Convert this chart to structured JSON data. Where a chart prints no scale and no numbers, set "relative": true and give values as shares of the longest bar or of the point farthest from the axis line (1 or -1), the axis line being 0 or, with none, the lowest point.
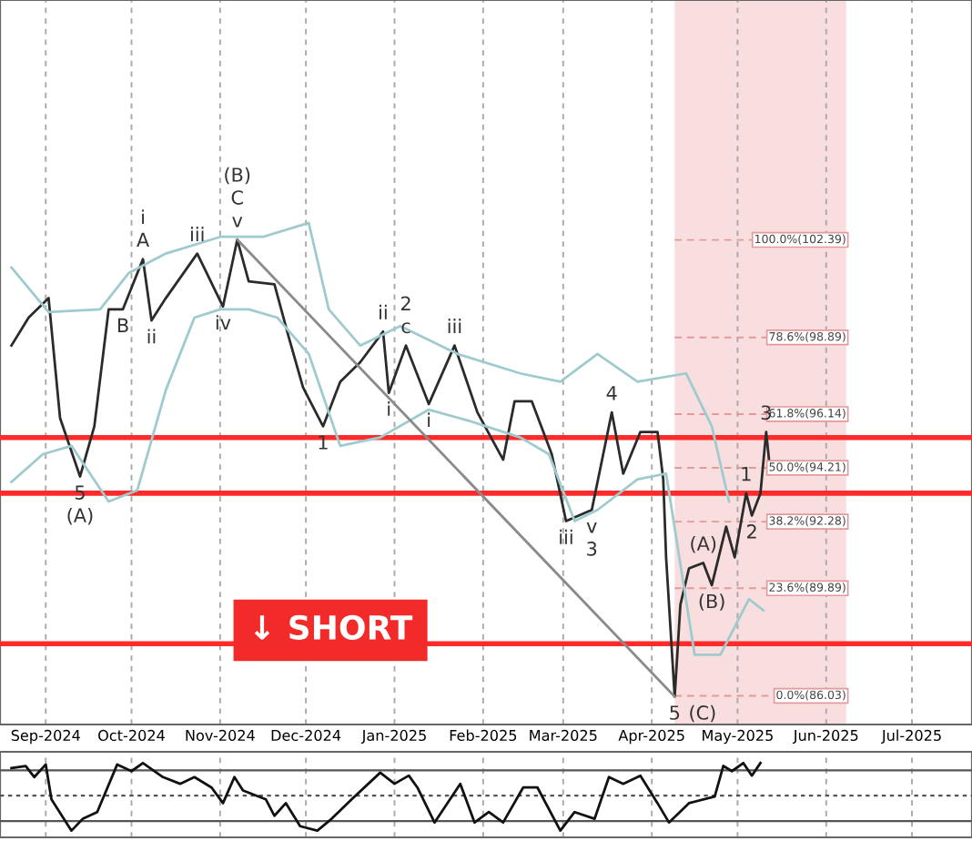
{
  "chart_data": [
    {
      "type": "line",
      "xlim": [
        "2024-08-16",
        "2025-07-22"
      ],
      "ylim": [
        85.0,
        111.0
      ],
      "xticks": [
        {
          "value": "2024-09-01",
          "label": "Sep-2024"
        },
        {
          "value": "2024-10-01",
          "label": "Oct-2024"
        },
        {
          "value": "2024-11-01",
          "label": "Nov-2024"
        },
        {
          "value": "2024-12-01",
          "label": "Dec-2024"
        },
        {
          "value": "2025-01-01",
          "label": "Jan-2025"
        },
        {
          "value": "2025-02-01",
          "label": "Feb-2025"
        },
        {
          "value": "2025-03-01",
          "label": "Mar-2025"
        },
        {
          "value": "2025-04-01",
          "label": "Apr-2025"
        },
        {
          "value": "2025-05-01",
          "label": "May-2025"
        },
        {
          "value": "2025-06-01",
          "label": "Jun-2025"
        },
        {
          "value": "2025-07-01",
          "label": "Jul-2025"
        }
      ],
      "grid": "x",
      "tick_labels": "x",
      "legend": false,
      "series": [
        {
          "color": "#2b2b2b",
          "x": [
            "2024-08-20",
            "2024-08-26",
            "2024-09-02",
            "2024-09-06",
            "2024-09-13",
            "2024-09-18",
            "2024-09-23",
            "2024-09-28",
            "2024-10-05",
            "2024-10-08",
            "2024-10-13",
            "2024-10-24",
            "2024-11-02",
            "2024-11-07",
            "2024-11-11",
            "2024-11-20",
            "2024-11-25",
            "2024-11-30",
            "2024-12-07",
            "2024-12-13",
            "2024-12-20",
            "2024-12-28",
            "2024-12-30",
            "2025-01-05",
            "2025-01-13",
            "2025-01-22",
            "2025-01-30",
            "2025-02-08",
            "2025-02-12",
            "2025-02-18",
            "2025-02-25",
            "2025-03-02",
            "2025-03-11",
            "2025-03-18",
            "2025-03-22",
            "2025-03-28",
            "2025-04-03",
            "2025-04-05",
            "2025-04-06",
            "2025-04-09",
            "2025-04-11",
            "2025-04-14",
            "2025-04-19",
            "2025-04-22",
            "2025-04-27",
            "2025-04-30",
            "2025-05-04",
            "2025-05-06",
            "2025-05-09",
            "2025-05-11",
            "2025-05-12"
          ],
          "values": [
            98.6,
            99.6,
            100.3,
            96.0,
            93.9,
            95.7,
            99.9,
            99.9,
            101.7,
            99.5,
            100.3,
            101.9,
            100.0,
            102.4,
            100.9,
            100.8,
            98.9,
            97.1,
            95.7,
            97.3,
            98.0,
            99.1,
            96.9,
            98.6,
            96.5,
            98.6,
            96.2,
            94.5,
            96.6,
            96.6,
            94.7,
            92.3,
            92.7,
            96.2,
            94.0,
            95.5,
            95.5,
            93.8,
            91.0,
            86.0,
            89.3,
            90.6,
            90.8,
            90.0,
            92.1,
            91.0,
            93.3,
            92.5,
            93.3,
            95.5,
            94.5
          ]
        },
        {
          "color": "#9fcbcf",
          "x": [
            "2024-08-20",
            "2024-09-02",
            "2024-09-20",
            "2024-09-30",
            "2024-10-13",
            "2024-11-01",
            "2024-11-16",
            "2024-12-02",
            "2024-12-09",
            "2024-12-20",
            "2025-01-03",
            "2025-01-23",
            "2025-02-14",
            "2025-02-28",
            "2025-03-13",
            "2025-03-27",
            "2025-04-13",
            "2025-04-22",
            "2025-04-28"
          ],
          "values": [
            101.4,
            99.8,
            99.9,
            101.2,
            101.9,
            102.5,
            102.5,
            103.0,
            99.9,
            98.6,
            99.3,
            98.3,
            97.6,
            97.3,
            98.3,
            97.3,
            97.6,
            95.7,
            93.0
          ]
        },
        {
          "color": "#9fcbcf",
          "x": [
            "2024-08-20",
            "2024-08-31",
            "2024-09-10",
            "2024-09-23",
            "2024-10-03",
            "2024-10-13",
            "2024-10-23",
            "2024-11-01",
            "2024-11-11",
            "2024-11-21",
            "2024-12-02",
            "2024-12-13",
            "2024-12-27",
            "2025-01-13",
            "2025-01-27",
            "2025-02-14",
            "2025-02-24",
            "2025-03-05",
            "2025-03-13",
            "2025-03-27",
            "2025-04-06",
            "2025-04-16",
            "2025-04-25",
            "2025-05-05",
            "2025-05-10"
          ],
          "values": [
            93.7,
            94.7,
            95.0,
            93.0,
            93.4,
            97.0,
            99.6,
            99.9,
            99.9,
            99.6,
            98.3,
            95.0,
            95.3,
            96.3,
            95.9,
            95.3,
            94.7,
            92.3,
            92.7,
            93.8,
            94.0,
            87.5,
            87.5,
            89.5,
            89.1
          ]
        },
        {
          "color": "#8a8a8a",
          "x": [
            "2024-11-07",
            "2025-04-09"
          ],
          "values": [
            102.4,
            86.0
          ]
        }
      ],
      "ref_lines": [
        {
          "axis": "y",
          "value": 95.3,
          "color": "#ff2a2a"
        },
        {
          "axis": "y",
          "value": 93.3,
          "color": "#ff2a2a"
        },
        {
          "axis": "y",
          "value": 87.9,
          "color": "#ff2a2a"
        },
        {
          "axis": "y",
          "value": 102.39,
          "label": "100.0%(102.39)",
          "color": "#e39a9a",
          "line_style": "dashed"
        },
        {
          "axis": "y",
          "value": 98.89,
          "label": "78.6%(98.89)",
          "color": "#e39a9a",
          "line_style": "dashed"
        },
        {
          "axis": "y",
          "value": 96.14,
          "label": "61.8%(96.14)",
          "color": "#e39a9a",
          "line_style": "dashed"
        },
        {
          "axis": "y",
          "value": 94.21,
          "label": "50.0%(94.21)",
          "color": "#e39a9a",
          "line_style": "dashed"
        },
        {
          "axis": "y",
          "value": 92.28,
          "label": "38.2%(92.28)",
          "color": "#e39a9a",
          "line_style": "dashed"
        },
        {
          "axis": "y",
          "value": 89.89,
          "label": "23.6%(89.89)",
          "color": "#e39a9a",
          "line_style": "dashed"
        },
        {
          "axis": "y",
          "value": 86.03,
          "label": "0.0%(86.03)",
          "color": "#e39a9a",
          "line_style": "dashed"
        }
      ],
      "bands": [
        {
          "axis": "x",
          "from": "2025-04-09",
          "to": "2025-06-08",
          "color": "#f8dede"
        }
      ],
      "annotations": [
        "↓ SHORT",
        {
          "text": "5",
          "x": "2024-09-13",
          "y": 93.9
        },
        {
          "text": "(A)",
          "x": "2024-09-13",
          "y": 93.9
        },
        {
          "text": "A",
          "x": "2024-10-05",
          "y": 101.7
        },
        {
          "text": "B",
          "x": "2024-09-28",
          "y": 99.9
        },
        {
          "text": "i",
          "x": "2024-10-05",
          "y": 101.7
        },
        {
          "text": "ii",
          "x": "2024-10-08",
          "y": 99.5
        },
        {
          "text": "iii",
          "x": "2024-10-24",
          "y": 101.9
        },
        {
          "text": "iv",
          "x": "2024-11-02",
          "y": 100.0
        },
        {
          "text": "v",
          "x": "2024-11-07",
          "y": 102.4
        },
        {
          "text": "C",
          "x": "2024-11-07",
          "y": 102.4
        },
        {
          "text": "(B)",
          "x": "2024-11-07",
          "y": 102.4
        },
        {
          "text": "1",
          "x": "2024-12-07",
          "y": 95.7
        },
        {
          "text": "ii",
          "x": "2024-12-28",
          "y": 99.1
        },
        {
          "text": "i",
          "x": "2024-12-30",
          "y": 96.9
        },
        {
          "text": "c",
          "x": "2025-01-05",
          "y": 98.6
        },
        {
          "text": "2",
          "x": "2025-01-05",
          "y": 98.6
        },
        {
          "text": "i",
          "x": "2025-01-13",
          "y": 96.5
        },
        {
          "text": "iii",
          "x": "2025-01-22",
          "y": 98.6
        },
        {
          "text": "iii",
          "x": "2025-03-02",
          "y": 92.3
        },
        {
          "text": "v",
          "x": "2025-03-11",
          "y": 92.7
        },
        {
          "text": "3",
          "x": "2025-03-11",
          "y": 92.7
        },
        {
          "text": "4",
          "x": "2025-03-18",
          "y": 96.2
        },
        {
          "text": "5",
          "x": "2025-04-09",
          "y": 86.0
        },
        {
          "text": "(C)",
          "x": "2025-04-09",
          "y": 86.0
        },
        {
          "text": "(A)",
          "x": "2025-04-19",
          "y": 90.8
        },
        {
          "text": "(B)",
          "x": "2025-04-22",
          "y": 90.0
        },
        {
          "text": "1",
          "x": "2025-05-04",
          "y": 93.3
        },
        {
          "text": "2",
          "x": "2025-05-06",
          "y": 92.5
        },
        {
          "text": "3",
          "x": "2025-05-11",
          "y": 95.5
        }
      ]
    },
    {
      "type": "line",
      "xlim": [
        "2024-08-16",
        "2025-07-22"
      ],
      "relative": true,
      "grid": "x",
      "tick_labels": false,
      "xticks": [
        {
          "value": "2024-09-01",
          "label": null
        },
        {
          "value": "2024-10-01",
          "label": null
        },
        {
          "value": "2024-11-01",
          "label": null
        },
        {
          "value": "2024-12-01",
          "label": null
        },
        {
          "value": "2025-01-01",
          "label": null
        },
        {
          "value": "2025-02-01",
          "label": null
        },
        {
          "value": "2025-03-01",
          "label": null
        },
        {
          "value": "2025-04-01",
          "label": null
        },
        {
          "value": "2025-05-01",
          "label": null
        },
        {
          "value": "2025-06-01",
          "label": null
        },
        {
          "value": "2025-07-01",
          "label": null
        }
      ],
      "series": [
        {
          "color": "#111111",
          "x": [
            "2024-08-20",
            "2024-08-25",
            "2024-08-28",
            "2024-09-01",
            "2024-09-03",
            "2024-09-10",
            "2024-09-14",
            "2024-09-19",
            "2024-09-26",
            "2024-10-01",
            "2024-10-05",
            "2024-10-12",
            "2024-10-18",
            "2024-10-23",
            "2024-10-29",
            "2024-11-02",
            "2024-11-06",
            "2024-11-09",
            "2024-11-17",
            "2024-11-20",
            "2024-11-24",
            "2024-11-29",
            "2024-12-05",
            "2024-12-10",
            "2024-12-17",
            "2024-12-27",
            "2025-01-01",
            "2025-01-06",
            "2025-01-09",
            "2025-01-15",
            "2025-01-24",
            "2025-01-29",
            "2025-02-03",
            "2025-02-08",
            "2025-02-15",
            "2025-02-20",
            "2025-02-28",
            "2025-03-05",
            "2025-03-12",
            "2025-03-17",
            "2025-03-22",
            "2025-03-28",
            "2025-04-03",
            "2025-04-07",
            "2025-04-14",
            "2025-04-23",
            "2025-04-26",
            "2025-04-29",
            "2025-05-03",
            "2025-05-06",
            "2025-05-09"
          ],
          "values": [
            0.93,
            0.96,
            0.81,
            0.98,
            0.51,
            0.09,
            0.25,
            0.34,
            0.98,
            0.89,
            1,
            0.81,
            0.72,
            0.81,
            0.67,
            0.46,
            0.81,
            0.63,
            0.51,
            0.29,
            0.46,
            0.15,
            0.09,
            0.25,
            0.51,
            0.87,
            0.72,
            0.83,
            0.67,
            0.2,
            0.72,
            0.2,
            0.34,
            0.2,
            0.67,
            0.67,
            0.09,
            0.34,
            0.25,
            0.81,
            0.72,
            0.83,
            0.46,
            0.2,
            0.46,
            0.55,
            0.96,
            0.89,
            1,
            0.83,
            1
          ]
        }
      ],
      "ref_lines": [
        {
          "axis": "y",
          "value": 0.9,
          "color": "#555555"
        },
        {
          "axis": "y",
          "value": 0.56,
          "color": "#555555",
          "line_style": "dotted"
        },
        {
          "axis": "y",
          "value": 0.22,
          "color": "#555555"
        }
      ]
    }
  ]
}
